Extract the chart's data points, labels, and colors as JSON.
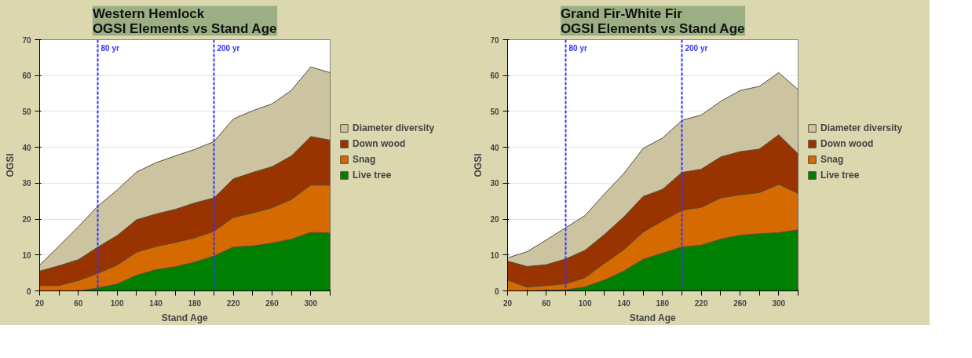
{
  "chart_data": [
    {
      "type": "area",
      "stacked": true,
      "title": "Western Hemlock\nOGSI Elements vs Stand Age",
      "xlabel": "Stand Age",
      "ylabel": "OGSI",
      "x": [
        20,
        40,
        60,
        80,
        100,
        120,
        140,
        160,
        180,
        200,
        220,
        240,
        260,
        280,
        300,
        320
      ],
      "series": [
        {
          "name": "Live tree",
          "color": "#008000",
          "values": [
            0,
            0,
            0,
            0.8,
            1.9,
            4.3,
            5.9,
            6.7,
            8,
            9.7,
            12.2,
            12.5,
            13.3,
            14.4,
            16.3,
            16.1
          ]
        },
        {
          "name": "Snag",
          "color": "#d46a00",
          "values": [
            1.5,
            1.5,
            2.9,
            4.1,
            5.3,
            6.5,
            6.5,
            6.8,
            6.8,
            6.9,
            8.3,
            9.2,
            9.9,
            11.1,
            13.2,
            13.4
          ]
        },
        {
          "name": "Down wood",
          "color": "#993300",
          "values": [
            4,
            5.5,
            5.8,
            7.3,
            8.2,
            9,
            9,
            9.2,
            9.7,
            9.3,
            10.7,
            11.3,
            11.4,
            12.1,
            13.5,
            12.5
          ]
        },
        {
          "name": "Diameter diversity",
          "color": "#ccc4a0",
          "values": [
            1.7,
            5.5,
            9.2,
            11.4,
            12.7,
            13.3,
            14.3,
            14.9,
            14.9,
            15.7,
            16.7,
            17.2,
            17.5,
            18.3,
            19.4,
            18.8
          ]
        }
      ],
      "xlim": [
        20,
        320
      ],
      "xticks": [
        20,
        {
          "value": 40,
          "label": null
        },
        60,
        {
          "value": 80,
          "label": null
        },
        100,
        {
          "value": 120,
          "label": null
        },
        140,
        {
          "value": 160,
          "label": null
        },
        180,
        {
          "value": 200,
          "label": null
        },
        220,
        {
          "value": 240,
          "label": null
        },
        260,
        {
          "value": 280,
          "label": null
        },
        300,
        {
          "value": 320,
          "label": null
        }
      ],
      "ylim": [
        0,
        70
      ],
      "yticks": [
        0,
        10,
        20,
        30,
        40,
        50,
        60,
        70
      ],
      "ref_lines": [
        {
          "axis": "x",
          "value": 80,
          "label": "80 yr",
          "color": "#3333ff",
          "line_style": "dashed"
        },
        {
          "axis": "x",
          "value": 200,
          "label": "200 yr",
          "color": "#3333ff",
          "line_style": "dashed"
        }
      ],
      "grid": "y",
      "legend": "right"
    },
    {
      "type": "area",
      "stacked": true,
      "title": "Grand Fir-White Fir\nOGSI Elements vs Stand Age",
      "xlabel": "Stand Age",
      "ylabel": "OGSI",
      "x": [
        20,
        40,
        60,
        80,
        100,
        120,
        140,
        160,
        180,
        200,
        220,
        240,
        260,
        280,
        300,
        320
      ],
      "series": [
        {
          "name": "Live tree",
          "color": "#008000",
          "values": [
            0,
            0,
            0.2,
            0.3,
            1.1,
            3,
            5.5,
            8.8,
            10.5,
            12.2,
            12.7,
            14.4,
            15.5,
            15.9,
            16.2,
            17
          ]
        },
        {
          "name": "Snag",
          "color": "#d46a00",
          "values": [
            3,
            1.1,
            1.3,
            1.7,
            2.6,
            4.7,
            6,
            7.6,
            9,
            10.3,
            10.6,
            11.5,
            11.3,
            11.5,
            13.5,
            10.2
          ]
        },
        {
          "name": "Down wood",
          "color": "#993300",
          "values": [
            5.3,
            5.7,
            5.8,
            6.9,
            7.6,
            8,
            9.1,
            9.9,
            8.8,
            10.5,
            10.6,
            11.4,
            12,
            12.1,
            13.8,
            11
          ]
        },
        {
          "name": "Diameter diversity",
          "color": "#ccc4a0",
          "values": [
            0.9,
            4.1,
            6.9,
            8.7,
            9.7,
            11.3,
            12.1,
            13.4,
            14.3,
            14.5,
            15.1,
            15.5,
            17,
            17.5,
            17.3,
            17.9
          ]
        }
      ],
      "xlim": [
        20,
        320
      ],
      "xticks": [
        20,
        {
          "value": 40,
          "label": null
        },
        60,
        {
          "value": 80,
          "label": null
        },
        100,
        {
          "value": 120,
          "label": null
        },
        140,
        {
          "value": 160,
          "label": null
        },
        180,
        {
          "value": 200,
          "label": null
        },
        220,
        {
          "value": 240,
          "label": null
        },
        260,
        {
          "value": 280,
          "label": null
        },
        300,
        {
          "value": 320,
          "label": null
        }
      ],
      "ylim": [
        0,
        70
      ],
      "yticks": [
        0,
        10,
        20,
        30,
        40,
        50,
        60,
        70
      ],
      "ref_lines": [
        {
          "axis": "x",
          "value": 80,
          "label": "80 yr",
          "color": "#3333ff",
          "line_style": "dashed"
        },
        {
          "axis": "x",
          "value": 200,
          "label": "200 yr",
          "color": "#3333ff",
          "line_style": "dashed"
        }
      ],
      "grid": "y",
      "legend": "right"
    }
  ]
}
